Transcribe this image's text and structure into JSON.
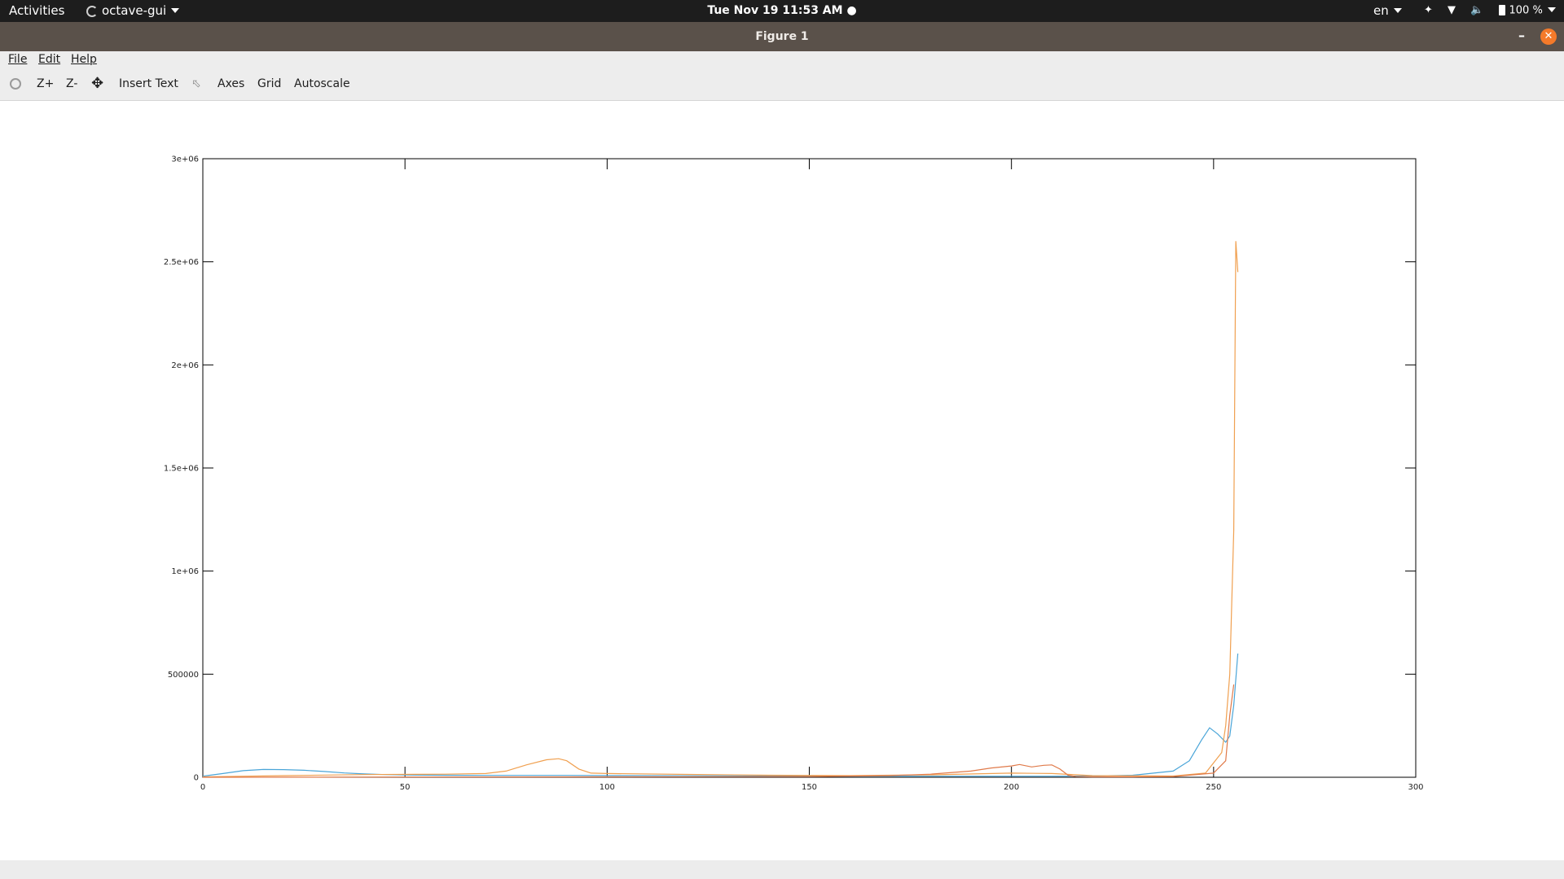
{
  "topbar": {
    "activities": "Activities",
    "app_name": "octave-gui",
    "clock": "Tue Nov 19  11:53 AM",
    "clock_dot": "●",
    "language": "en",
    "battery": "100 %"
  },
  "window": {
    "title": "Figure 1",
    "minimize": "–",
    "close": "✕"
  },
  "menubar": {
    "file": "File",
    "edit": "Edit",
    "help": "Help"
  },
  "toolbar": {
    "zoom_in": "Z+",
    "zoom_out": "Z-",
    "pan_icon": "✥",
    "insert_text": "Insert Text",
    "select_icon": "⬁",
    "axes": "Axes",
    "grid": "Grid",
    "autoscale": "Autoscale"
  },
  "chart_data": {
    "type": "line",
    "title": "",
    "xlabel": "",
    "ylabel": "",
    "xlim": [
      0,
      300
    ],
    "ylim": [
      0,
      3000000
    ],
    "xticks": [
      0,
      50,
      100,
      150,
      200,
      250,
      300
    ],
    "xtick_labels": [
      "0",
      "50",
      "100",
      "150",
      "200",
      "250",
      "300"
    ],
    "yticks": [
      0,
      500000,
      1000000,
      1500000,
      2000000,
      2500000,
      3000000
    ],
    "ytick_labels": [
      "0",
      "500000",
      "1e+06",
      "1.5e+06",
      "2e+06",
      "2.5e+06",
      "3e+06"
    ],
    "grid": false,
    "series": [
      {
        "color": "#4aa5d8",
        "x": [
          0,
          5,
          10,
          15,
          20,
          25,
          30,
          35,
          40,
          45,
          50,
          60,
          70,
          80,
          90,
          100,
          120,
          140,
          160,
          180,
          200,
          210,
          220,
          230,
          240,
          244,
          247,
          249,
          251,
          253,
          254,
          255,
          256
        ],
        "y": [
          5000,
          18000,
          32000,
          38000,
          37000,
          34000,
          28000,
          21000,
          16000,
          13000,
          11000,
          10000,
          9000,
          9000,
          9000,
          8000,
          7000,
          6000,
          5000,
          5000,
          5000,
          5000,
          6000,
          10000,
          30000,
          80000,
          180000,
          240000,
          210000,
          170000,
          200000,
          350000,
          600000
        ]
      },
      {
        "color": "#f0a050",
        "x": [
          0,
          20,
          40,
          60,
          70,
          75,
          80,
          85,
          88,
          90,
          93,
          96,
          100,
          120,
          140,
          160,
          180,
          200,
          210,
          220,
          230,
          240,
          248,
          252,
          253,
          254,
          255,
          255.5,
          256
        ],
        "y": [
          2000,
          8000,
          13000,
          15000,
          18000,
          30000,
          60000,
          85000,
          90000,
          80000,
          40000,
          20000,
          18000,
          14000,
          10000,
          8000,
          12000,
          20000,
          18000,
          8000,
          7000,
          6000,
          20000,
          120000,
          250000,
          500000,
          1200000,
          2600000,
          2450000
        ]
      },
      {
        "color": "#e07a4a",
        "x": [
          0,
          50,
          100,
          150,
          170,
          180,
          190,
          195,
          200,
          202,
          205,
          208,
          210,
          212,
          214,
          216,
          220,
          230,
          240,
          250,
          253,
          254,
          255
        ],
        "y": [
          0,
          1000,
          2000,
          3000,
          8000,
          15000,
          30000,
          45000,
          55000,
          62000,
          50000,
          58000,
          60000,
          40000,
          10000,
          3000,
          2000,
          2000,
          3000,
          20000,
          80000,
          300000,
          450000
        ]
      }
    ]
  }
}
